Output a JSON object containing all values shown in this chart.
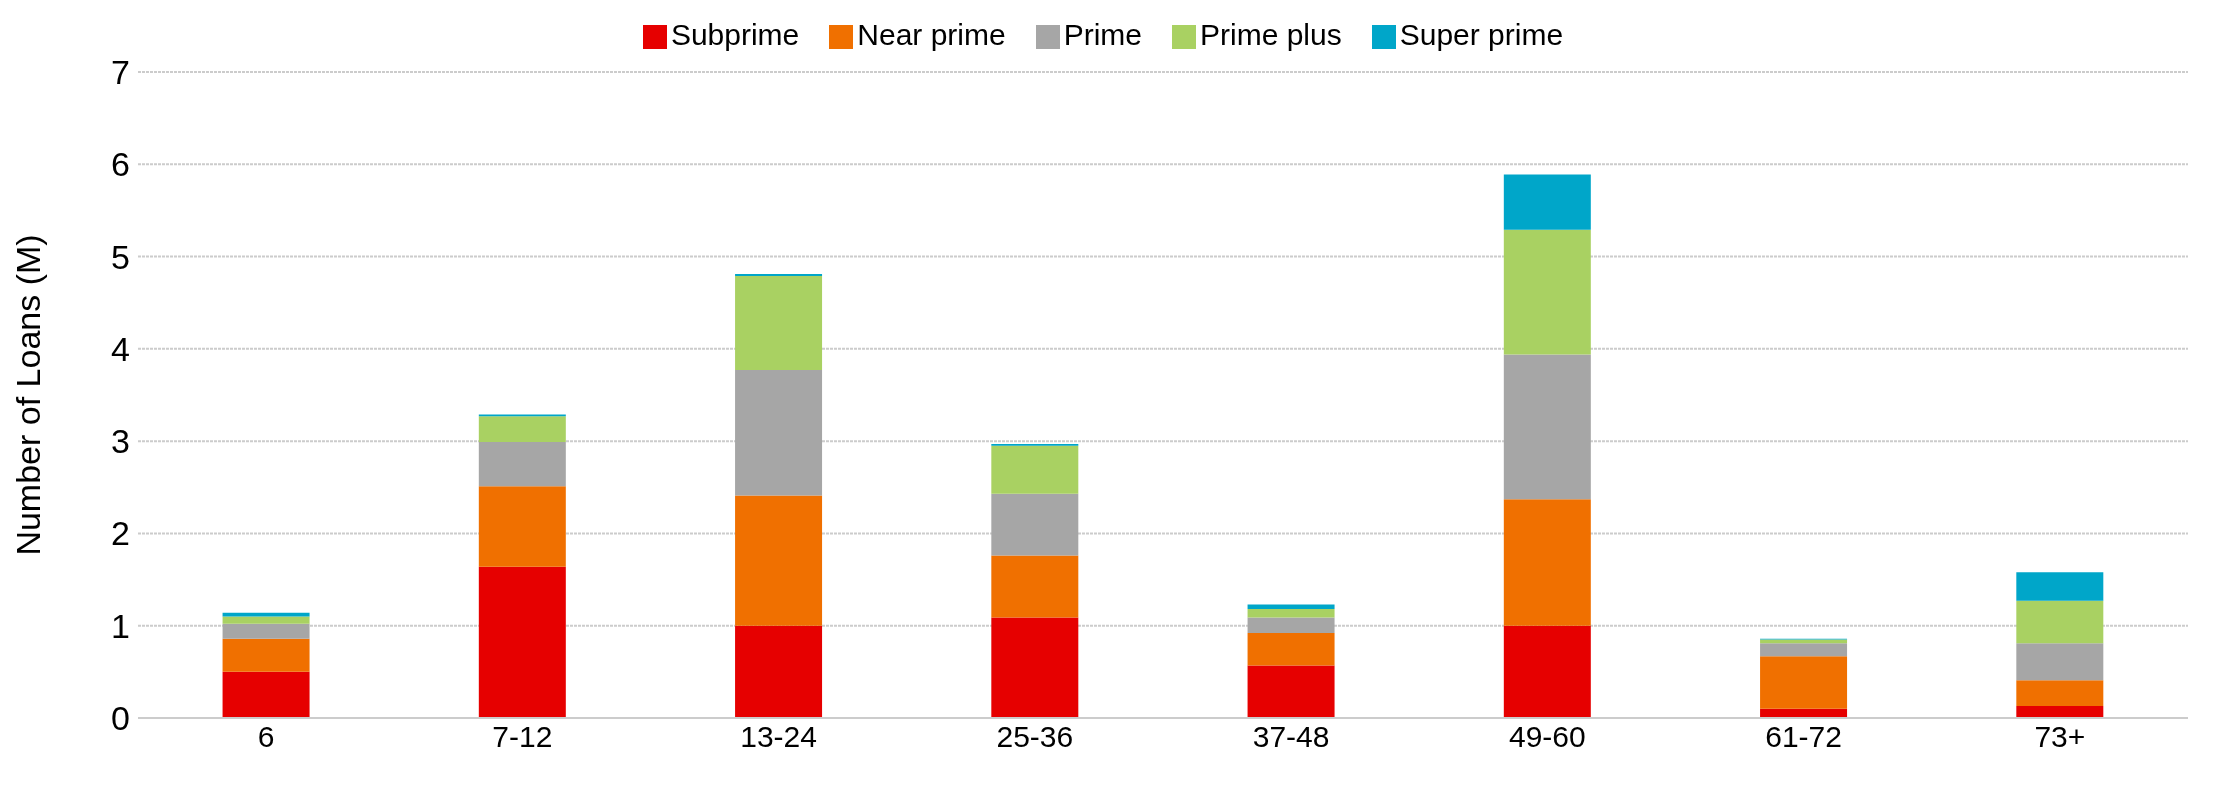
{
  "chart_data": {
    "type": "bar",
    "stacked": true,
    "ylabel": "Number of Loans (M)",
    "categories": [
      "6",
      "7-12",
      "13-24",
      "25-36",
      "37-48",
      "49-60",
      "61-72",
      "73+"
    ],
    "series": [
      {
        "name": "Subprime",
        "color": "#e60000",
        "values": [
          0.5,
          1.64,
          1.0,
          1.09,
          0.57,
          1.0,
          0.1,
          0.13
        ]
      },
      {
        "name": "Near prime",
        "color": "#f07000",
        "values": [
          0.36,
          0.87,
          1.41,
          0.67,
          0.35,
          1.37,
          0.57,
          0.28
        ]
      },
      {
        "name": "Prime",
        "color": "#a6a6a6",
        "values": [
          0.16,
          0.48,
          1.36,
          0.67,
          0.17,
          1.57,
          0.14,
          0.4
        ]
      },
      {
        "name": "Prime plus",
        "color": "#a9d162",
        "values": [
          0.08,
          0.28,
          1.02,
          0.52,
          0.09,
          1.35,
          0.04,
          0.46
        ]
      },
      {
        "name": "Super prime",
        "color": "#00a6c9",
        "values": [
          0.04,
          0.02,
          0.02,
          0.02,
          0.05,
          0.6,
          0.01,
          0.31
        ]
      }
    ],
    "ylim": [
      0,
      7
    ],
    "yticks": [
      0,
      1,
      2,
      3,
      4,
      5,
      6,
      7
    ],
    "grid": "y",
    "legend": "top"
  }
}
